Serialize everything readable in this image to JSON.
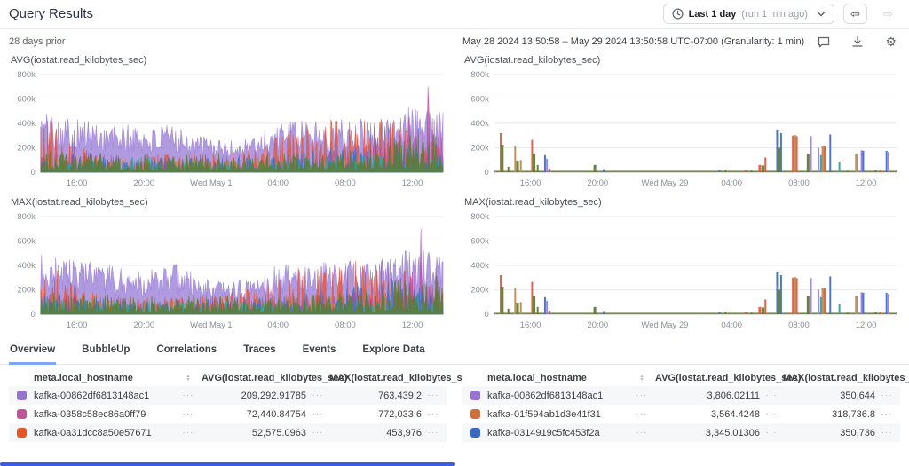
{
  "header": {
    "title": "Query Results",
    "time_range": {
      "label": "Last 1 day",
      "note": "(run 1 min ago)"
    }
  },
  "subheader": {
    "comparison_label": "28 days prior",
    "date_range": "May 28 2024 13:50:58 – May 29 2024 13:50:58 UTC-07:00 (Granularity: 1 min)"
  },
  "ui": {
    "sort_up": "▲",
    "sort_down": "▼",
    "ellipsis": "···",
    "back_arrow": "⇦",
    "forward_arrow": "⇨",
    "gear": "⚙"
  },
  "tabs": {
    "items": [
      "Overview",
      "BubbleUp",
      "Correlations",
      "Traces",
      "Events",
      "Explore Data"
    ],
    "active": "Overview"
  },
  "chart_data": {
    "type": "area",
    "ylabel": "iostat.read_kilobytes_sec",
    "ylim": [
      0,
      800000
    ],
    "grid": "horizontal",
    "palette": [
      "#9d82d8",
      "#e2583e",
      "#c250a2",
      "#5e7b33",
      "#4070c8",
      "#2ba6a0",
      "#bd8b57"
    ],
    "yticks": [
      [
        800,
        "800k"
      ],
      [
        600,
        "600k"
      ],
      [
        400,
        "400k"
      ],
      [
        200,
        "200k"
      ],
      [
        0,
        "0"
      ]
    ],
    "xticks": {
      "may1": [
        [
          0.09,
          "16:00"
        ],
        [
          0.257,
          "20:00"
        ],
        [
          0.424,
          "Wed May 1"
        ],
        [
          0.59,
          "04:00"
        ],
        [
          0.757,
          "08:00"
        ],
        [
          0.924,
          "12:00"
        ]
      ],
      "may29": [
        [
          0.09,
          "16:00"
        ],
        [
          0.257,
          "20:00"
        ],
        [
          0.424,
          "Wed May 29"
        ],
        [
          0.59,
          "04:00"
        ],
        [
          0.757,
          "08:00"
        ],
        [
          0.924,
          "12:00"
        ]
      ]
    },
    "charts": [
      {
        "title": "AVG(iostat.read_kilobytes_sec)",
        "mode": "dense",
        "seed": 101,
        "xticks": "may1"
      },
      {
        "title": "AVG(iostat.read_kilobytes_sec)",
        "mode": "sparse",
        "seed": 301,
        "xticks": "may29"
      },
      {
        "title": "MAX(iostat.read_kilobytes_sec)",
        "mode": "dense",
        "seed": 202,
        "xticks": "may1"
      },
      {
        "title": "MAX(iostat.read_kilobytes_sec)",
        "mode": "sparse",
        "seed": 302,
        "xticks": "may29"
      }
    ],
    "dense_series": [
      {
        "color": "#9d82d8",
        "kind": "band",
        "lo": 0.35,
        "env": [
          [
            0,
            500
          ],
          [
            0.04,
            480
          ],
          [
            0.1,
            440
          ],
          [
            0.18,
            400
          ],
          [
            0.25,
            385
          ],
          [
            0.3,
            370
          ],
          [
            0.34,
            420
          ],
          [
            0.4,
            300
          ],
          [
            0.47,
            260
          ],
          [
            0.52,
            300
          ],
          [
            0.58,
            400
          ],
          [
            0.64,
            430
          ],
          [
            0.7,
            430
          ],
          [
            0.76,
            440
          ],
          [
            0.82,
            445
          ],
          [
            0.87,
            460
          ],
          [
            0.9,
            560
          ],
          [
            0.93,
            520
          ],
          [
            0.955,
            545
          ],
          [
            0.98,
            480
          ],
          [
            1,
            615
          ]
        ]
      },
      {
        "color": "#e2583e",
        "kind": "spike",
        "pw": 2.6,
        "burst": 0.1,
        "env": [
          [
            0,
            450
          ],
          [
            0.03,
            420
          ],
          [
            0.08,
            260
          ],
          [
            0.15,
            160
          ],
          [
            0.25,
            140
          ],
          [
            0.35,
            150
          ],
          [
            0.45,
            160
          ],
          [
            0.55,
            230
          ],
          [
            0.62,
            360
          ],
          [
            0.68,
            420
          ],
          [
            0.74,
            440
          ],
          [
            0.82,
            450
          ],
          [
            0.88,
            430
          ],
          [
            0.92,
            330
          ],
          [
            0.96,
            260
          ],
          [
            1,
            210
          ]
        ]
      },
      {
        "color": "#c250a2",
        "kind": "spike",
        "pw": 3.2,
        "burst": 0.05,
        "env": [
          [
            0,
            210
          ],
          [
            0.1,
            130
          ],
          [
            0.3,
            95
          ],
          [
            0.5,
            95
          ],
          [
            0.68,
            150
          ],
          [
            0.78,
            210
          ],
          [
            0.86,
            260
          ],
          [
            0.9,
            340
          ],
          [
            0.925,
            775
          ],
          [
            0.945,
            700
          ],
          [
            0.96,
            765
          ],
          [
            0.98,
            420
          ],
          [
            1,
            330
          ]
        ]
      },
      {
        "color": "#bd8b57",
        "kind": "spike",
        "pw": 3.4,
        "burst": 0.03,
        "env": [
          [
            0,
            130
          ],
          [
            0.4,
            110
          ],
          [
            0.7,
            150
          ],
          [
            1,
            170
          ]
        ]
      },
      {
        "color": "#4070c8",
        "kind": "spike",
        "pw": 3.4,
        "burst": 0.04,
        "env": [
          [
            0,
            170
          ],
          [
            0.3,
            120
          ],
          [
            0.6,
            140
          ],
          [
            0.8,
            260
          ],
          [
            0.9,
            310
          ],
          [
            1,
            220
          ]
        ]
      },
      {
        "color": "#2ba6a0",
        "kind": "spike",
        "pw": 3.6,
        "burst": 0.03,
        "env": [
          [
            0,
            150
          ],
          [
            0.5,
            105
          ],
          [
            1,
            185
          ]
        ]
      },
      {
        "color": "#5e7b33",
        "kind": "grass",
        "pw": 2.4,
        "env": [
          [
            0,
            175
          ],
          [
            0.3,
            150
          ],
          [
            0.55,
            160
          ],
          [
            0.75,
            180
          ],
          [
            0.85,
            210
          ],
          [
            0.92,
            370
          ],
          [
            1,
            320
          ]
        ]
      }
    ],
    "sparse_spikes": [
      [
        0.016,
        1,
        320,
        2
      ],
      [
        0.02,
        3,
        225,
        3
      ],
      [
        0.035,
        3,
        45,
        2
      ],
      [
        0.052,
        6,
        210,
        2
      ],
      [
        0.058,
        3,
        95,
        3
      ],
      [
        0.066,
        6,
        100,
        2
      ],
      [
        0.094,
        1,
        265,
        2
      ],
      [
        0.099,
        3,
        150,
        3
      ],
      [
        0.108,
        3,
        60,
        2
      ],
      [
        0.126,
        4,
        140,
        2
      ],
      [
        0.131,
        0,
        110,
        2
      ],
      [
        0.137,
        2,
        30,
        2
      ],
      [
        0.25,
        3,
        60,
        3
      ],
      [
        0.272,
        4,
        25,
        2
      ],
      [
        0.56,
        4,
        18,
        2
      ],
      [
        0.575,
        3,
        22,
        2
      ],
      [
        0.625,
        1,
        15,
        2
      ],
      [
        0.64,
        3,
        12,
        2
      ],
      [
        0.66,
        1,
        60,
        3
      ],
      [
        0.668,
        3,
        55,
        3
      ],
      [
        0.674,
        1,
        120,
        2
      ],
      [
        0.703,
        4,
        350,
        2
      ],
      [
        0.708,
        3,
        200,
        3
      ],
      [
        0.713,
        4,
        320,
        2
      ],
      [
        0.742,
        1,
        300,
        2
      ],
      [
        0.747,
        6,
        305,
        3
      ],
      [
        0.752,
        1,
        295,
        2
      ],
      [
        0.78,
        3,
        150,
        3
      ],
      [
        0.787,
        0,
        295,
        2
      ],
      [
        0.806,
        0,
        200,
        2
      ],
      [
        0.812,
        5,
        140,
        2
      ],
      [
        0.818,
        6,
        215,
        4
      ],
      [
        0.822,
        1,
        210,
        2
      ],
      [
        0.835,
        4,
        310,
        2
      ],
      [
        0.858,
        5,
        80,
        2
      ],
      [
        0.878,
        3,
        12,
        2
      ],
      [
        0.9,
        6,
        150,
        3
      ],
      [
        0.913,
        0,
        180,
        2
      ],
      [
        0.917,
        4,
        175,
        2
      ],
      [
        0.948,
        3,
        15,
        2
      ],
      [
        0.96,
        1,
        20,
        2
      ],
      [
        0.975,
        4,
        175,
        2
      ],
      [
        0.98,
        0,
        165,
        2
      ]
    ]
  },
  "tables": {
    "columns": {
      "host": "meta.local_hostname",
      "avg": "AVG(iostat.read_kilobytes_sec)",
      "max": "MAX(iostat.read_kilobytes_sec)"
    },
    "left": {
      "rows": [
        {
          "color": "#9575cd",
          "host": "kafka-00862df6813148ac1",
          "avg": "209,292.91785",
          "max": "763,439.2"
        },
        {
          "color": "#bf549b",
          "host": "kafka-0358c58ec86a0ff79",
          "avg": "72,440.84754",
          "max": "772,033.6"
        },
        {
          "color": "#e65525",
          "host": "kafka-0a31dcc8a50e57671",
          "avg": "52,575.0963",
          "max": "453,976"
        }
      ]
    },
    "right": {
      "rows": [
        {
          "color": "#9575cd",
          "host": "kafka-00862df6813148ac1",
          "avg": "3,806.02111",
          "max": "350,644"
        },
        {
          "color": "#cd7040",
          "host": "kafka-01f594ab1d3e41f31",
          "avg": "3,564.4248",
          "max": "318,736.8"
        },
        {
          "color": "#3c68c4",
          "host": "kafka-0314919c5fc453f2a",
          "avg": "3,345.01306",
          "max": "350,736"
        }
      ]
    }
  }
}
